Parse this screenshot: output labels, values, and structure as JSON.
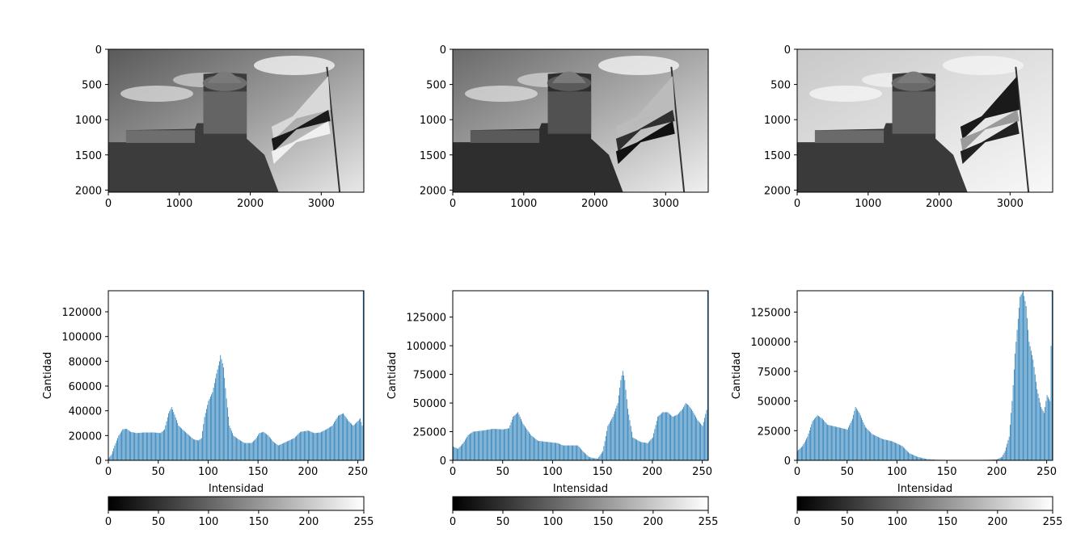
{
  "figure": {
    "image_axes": {
      "xticks": [
        0,
        1000,
        2000,
        3000
      ],
      "yticks": [
        0,
        500,
        1000,
        1500,
        2000
      ],
      "xlim": [
        0,
        3600
      ],
      "ylim": [
        2030,
        0
      ]
    },
    "hist_xlabel": "Intensidad",
    "hist_ylabel": "Cantidad",
    "colorbar": {
      "ticks": [
        0,
        50,
        100,
        150,
        200,
        255
      ],
      "range": [
        0,
        255
      ],
      "cmap": "gray"
    },
    "bar_color": "#1f77b4"
  },
  "chart_data": [
    {
      "type": "image",
      "panel": "original-gray",
      "xticks": [
        0,
        1000,
        2000,
        3000
      ],
      "yticks": [
        0,
        500,
        1000,
        1500,
        2000
      ]
    },
    {
      "type": "image",
      "panel": "contrast-adjusted",
      "xticks": [
        0,
        1000,
        2000,
        3000
      ],
      "yticks": [
        0,
        500,
        1000,
        1500,
        2000
      ]
    },
    {
      "type": "image",
      "panel": "brightened",
      "xticks": [
        0,
        1000,
        2000,
        3000
      ],
      "yticks": [
        0,
        500,
        1000,
        1500,
        2000
      ]
    },
    {
      "type": "bar",
      "xlabel": "Intensidad",
      "ylabel": "Cantidad",
      "xlim": [
        0,
        256
      ],
      "ylim": [
        0,
        137000
      ],
      "yticks": [
        0,
        20000,
        40000,
        60000,
        80000,
        100000,
        120000
      ],
      "xticks": [
        0,
        50,
        100,
        150,
        200,
        250
      ],
      "points": [
        [
          0,
          1500
        ],
        [
          3,
          5000
        ],
        [
          6,
          12000
        ],
        [
          10,
          20000
        ],
        [
          14,
          25000
        ],
        [
          18,
          25500
        ],
        [
          22,
          23000
        ],
        [
          28,
          22000
        ],
        [
          35,
          22500
        ],
        [
          45,
          22500
        ],
        [
          52,
          22000
        ],
        [
          56,
          25000
        ],
        [
          60,
          38000
        ],
        [
          63,
          43000
        ],
        [
          66,
          37000
        ],
        [
          70,
          28000
        ],
        [
          78,
          22000
        ],
        [
          85,
          17000
        ],
        [
          90,
          16000
        ],
        [
          93,
          18000
        ],
        [
          96,
          35000
        ],
        [
          100,
          48000
        ],
        [
          104,
          55000
        ],
        [
          108,
          70000
        ],
        [
          111,
          80000
        ],
        [
          112,
          85000
        ],
        [
          115,
          75000
        ],
        [
          118,
          50000
        ],
        [
          121,
          28000
        ],
        [
          125,
          20000
        ],
        [
          130,
          17000
        ],
        [
          136,
          14000
        ],
        [
          143,
          14000
        ],
        [
          147,
          17000
        ],
        [
          151,
          22000
        ],
        [
          155,
          23000
        ],
        [
          160,
          20000
        ],
        [
          165,
          15000
        ],
        [
          170,
          12000
        ],
        [
          178,
          15000
        ],
        [
          186,
          18000
        ],
        [
          192,
          23000
        ],
        [
          200,
          24000
        ],
        [
          206,
          22000
        ],
        [
          212,
          22500
        ],
        [
          218,
          25000
        ],
        [
          224,
          28000
        ],
        [
          230,
          36000
        ],
        [
          235,
          38000
        ],
        [
          240,
          32000
        ],
        [
          245,
          28000
        ],
        [
          250,
          32000
        ],
        [
          252,
          34000
        ],
        [
          254,
          28000
        ],
        [
          255,
          137000
        ]
      ]
    },
    {
      "type": "bar",
      "xlabel": "Intensidad",
      "ylabel": "Cantidad",
      "xlim": [
        0,
        256
      ],
      "ylim": [
        0,
        148000
      ],
      "yticks": [
        0,
        25000,
        50000,
        75000,
        100000,
        125000
      ],
      "xticks": [
        0,
        50,
        100,
        150,
        200,
        250
      ],
      "points": [
        [
          0,
          12000
        ],
        [
          5,
          10000
        ],
        [
          10,
          15000
        ],
        [
          15,
          22000
        ],
        [
          20,
          25000
        ],
        [
          30,
          26000
        ],
        [
          40,
          27500
        ],
        [
          50,
          27000
        ],
        [
          56,
          28000
        ],
        [
          60,
          38000
        ],
        [
          65,
          42000
        ],
        [
          70,
          32000
        ],
        [
          78,
          22000
        ],
        [
          85,
          17000
        ],
        [
          95,
          16000
        ],
        [
          105,
          15000
        ],
        [
          110,
          13000
        ],
        [
          120,
          13000
        ],
        [
          125,
          13000
        ],
        [
          130,
          8000
        ],
        [
          136,
          3000
        ],
        [
          140,
          2000
        ],
        [
          145,
          1500
        ],
        [
          150,
          8000
        ],
        [
          155,
          30000
        ],
        [
          160,
          38000
        ],
        [
          165,
          50000
        ],
        [
          168,
          70000
        ],
        [
          170,
          78000
        ],
        [
          172,
          70000
        ],
        [
          175,
          45000
        ],
        [
          180,
          20000
        ],
        [
          188,
          16000
        ],
        [
          195,
          15000
        ],
        [
          200,
          20000
        ],
        [
          205,
          38000
        ],
        [
          210,
          42000
        ],
        [
          215,
          42000
        ],
        [
          220,
          38000
        ],
        [
          225,
          40000
        ],
        [
          230,
          45000
        ],
        [
          233,
          50000
        ],
        [
          236,
          48000
        ],
        [
          240,
          43000
        ],
        [
          245,
          35000
        ],
        [
          250,
          30000
        ],
        [
          254,
          44000
        ],
        [
          255,
          148000
        ]
      ]
    },
    {
      "type": "bar",
      "xlabel": "Intensidad",
      "ylabel": "Cantidad",
      "xlim": [
        0,
        256
      ],
      "ylim": [
        0,
        143000
      ],
      "yticks": [
        0,
        25000,
        50000,
        75000,
        100000,
        125000
      ],
      "xticks": [
        0,
        50,
        100,
        150,
        200,
        250
      ],
      "points": [
        [
          0,
          8000
        ],
        [
          5,
          12000
        ],
        [
          10,
          20000
        ],
        [
          15,
          33000
        ],
        [
          20,
          38000
        ],
        [
          25,
          35000
        ],
        [
          30,
          30000
        ],
        [
          40,
          28000
        ],
        [
          50,
          26000
        ],
        [
          55,
          35000
        ],
        [
          58,
          45000
        ],
        [
          62,
          40000
        ],
        [
          68,
          28000
        ],
        [
          75,
          22000
        ],
        [
          85,
          18000
        ],
        [
          95,
          16000
        ],
        [
          105,
          12000
        ],
        [
          112,
          6000
        ],
        [
          120,
          3000
        ],
        [
          130,
          1000
        ],
        [
          140,
          500
        ],
        [
          150,
          300
        ],
        [
          160,
          200
        ],
        [
          170,
          200
        ],
        [
          180,
          300
        ],
        [
          190,
          400
        ],
        [
          200,
          800
        ],
        [
          205,
          3000
        ],
        [
          208,
          8000
        ],
        [
          212,
          20000
        ],
        [
          215,
          50000
        ],
        [
          218,
          90000
        ],
        [
          220,
          110000
        ],
        [
          223,
          138000
        ],
        [
          226,
          143000
        ],
        [
          229,
          130000
        ],
        [
          232,
          100000
        ],
        [
          236,
          85000
        ],
        [
          240,
          60000
        ],
        [
          244,
          45000
        ],
        [
          247,
          40000
        ],
        [
          250,
          55000
        ],
        [
          253,
          50000
        ],
        [
          255,
          143000
        ]
      ]
    }
  ]
}
